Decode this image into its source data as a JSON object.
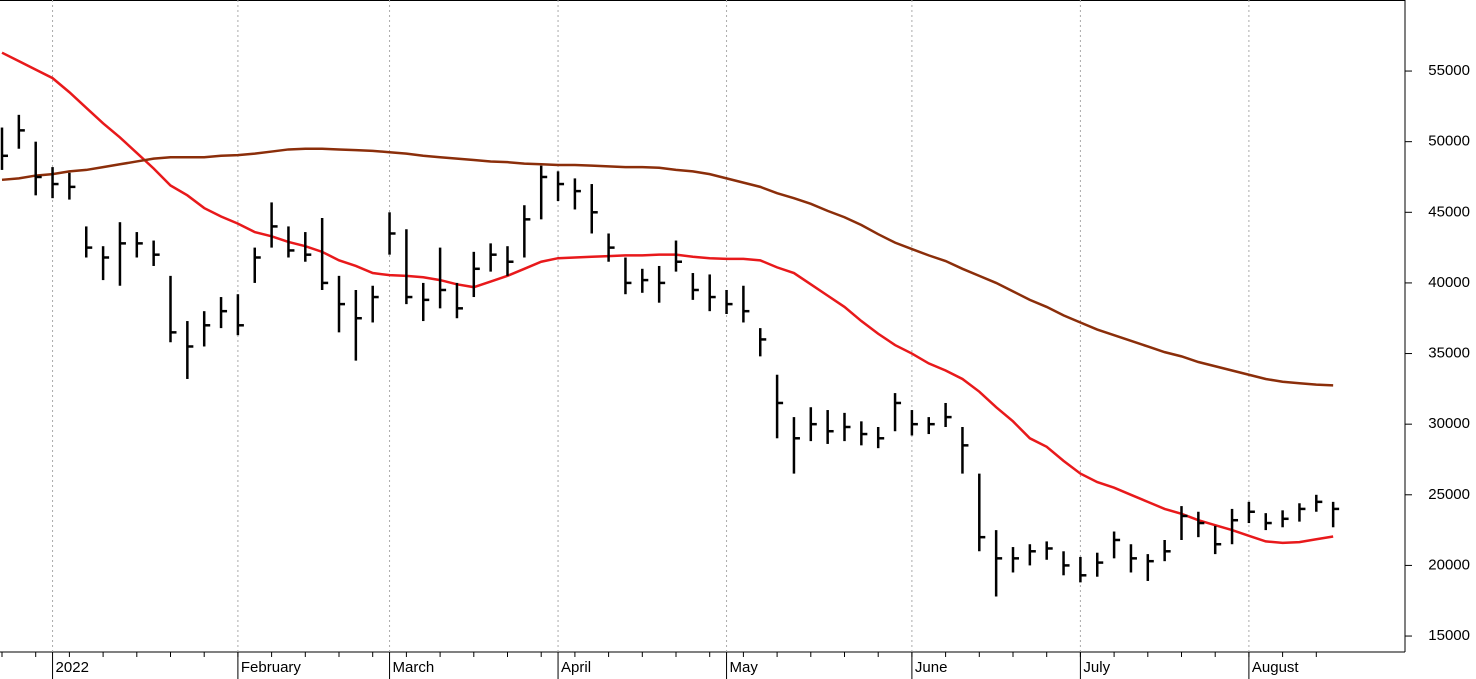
{
  "chart_data": {
    "type": "ohlc",
    "categories": [
      null,
      null,
      null,
      "2022",
      null,
      null,
      null,
      null,
      null,
      null,
      null,
      null,
      null,
      null,
      "February",
      null,
      null,
      null,
      null,
      null,
      null,
      null,
      null,
      "March",
      null,
      null,
      null,
      null,
      null,
      null,
      null,
      null,
      null,
      "April",
      null,
      null,
      null,
      null,
      null,
      null,
      null,
      null,
      null,
      "May",
      null,
      null,
      null,
      null,
      null,
      null,
      null,
      null,
      null,
      null,
      "June",
      null,
      null,
      null,
      null,
      null,
      null,
      null,
      null,
      null,
      "July",
      null,
      null,
      null,
      null,
      null,
      null,
      null,
      null,
      null,
      "August",
      null,
      null,
      null,
      null,
      null
    ],
    "high": [
      51000,
      51900,
      50000,
      48200,
      47800,
      44000,
      42600,
      44300,
      43600,
      43000,
      40500,
      37300,
      38000,
      39000,
      39200,
      42500,
      45700,
      44000,
      43600,
      44600,
      40500,
      39500,
      39800,
      45000,
      43800,
      40000,
      42500,
      40000,
      42200,
      42800,
      42600,
      45500,
      48300,
      47900,
      47400,
      47000,
      43500,
      41800,
      41000,
      41200,
      43000,
      40700,
      40600,
      39500,
      39800,
      36800,
      33500,
      30500,
      31200,
      31000,
      30800,
      30200,
      29800,
      32200,
      31000,
      30500,
      31500,
      29800,
      26500,
      22500,
      21300,
      21500,
      21700,
      21000,
      20600,
      20900,
      22400,
      21500,
      20800,
      21800,
      24200,
      23800,
      22800,
      24000,
      24500,
      23700,
      23900,
      24400,
      25000,
      24500
    ],
    "low": [
      48000,
      49500,
      46200,
      46000,
      45900,
      41800,
      40200,
      39800,
      41800,
      41200,
      35800,
      33200,
      35500,
      36800,
      36300,
      40000,
      42500,
      41800,
      41500,
      39500,
      36500,
      34500,
      37200,
      42000,
      38500,
      37300,
      38200,
      37500,
      39000,
      40800,
      40500,
      41800,
      44500,
      45800,
      45200,
      43500,
      41500,
      39200,
      39300,
      38600,
      40800,
      38800,
      38000,
      37800,
      37200,
      34800,
      29000,
      26500,
      28800,
      28600,
      28800,
      28500,
      28300,
      29500,
      29200,
      29300,
      29800,
      26500,
      21000,
      17800,
      19500,
      20000,
      20400,
      19300,
      18800,
      19200,
      20500,
      19500,
      18900,
      20300,
      21800,
      22000,
      20800,
      21500,
      23000,
      22500,
      22700,
      23100,
      23800,
      22700
    ],
    "close": [
      49000,
      50800,
      47500,
      47000,
      46800,
      42500,
      41800,
      42800,
      42800,
      42000,
      36500,
      35500,
      37000,
      38000,
      37000,
      41800,
      44000,
      42300,
      42000,
      40000,
      38500,
      37500,
      39000,
      43500,
      39000,
      38800,
      39500,
      38200,
      41000,
      42000,
      41500,
      44500,
      47500,
      47000,
      46500,
      45000,
      42500,
      40000,
      40200,
      40000,
      41500,
      39500,
      39000,
      38500,
      38000,
      36000,
      31500,
      29000,
      30000,
      29500,
      29800,
      29300,
      29000,
      31500,
      30000,
      30000,
      30500,
      28500,
      22000,
      20500,
      20500,
      21000,
      21200,
      20000,
      19300,
      20200,
      21800,
      20500,
      20300,
      21000,
      23500,
      23000,
      21500,
      23200,
      23800,
      23000,
      23300,
      24000,
      24500,
      24000
    ],
    "color": "#000000",
    "lines": [
      {
        "color": "#e8191b",
        "values": [
          56300,
          55700,
          55100,
          54500,
          53500,
          52400,
          51300,
          50300,
          49200,
          48100,
          46900,
          46200,
          45300,
          44700,
          44200,
          43600,
          43300,
          42900,
          42600,
          42200,
          41600,
          41200,
          40700,
          40550,
          40500,
          40400,
          40200,
          39900,
          39700,
          40100,
          40500,
          41000,
          41500,
          41750,
          41800,
          41850,
          41900,
          41950,
          41950,
          42000,
          42000,
          41850,
          41750,
          41700,
          41700,
          41600,
          41100,
          40700,
          39900,
          39100,
          38300,
          37300,
          36400,
          35600,
          35000,
          34300,
          33800,
          33200,
          32300,
          31200,
          30200,
          29000,
          28400,
          27400,
          26500,
          25900,
          25500,
          25000,
          24500,
          24000,
          23650,
          23200,
          22850,
          22500,
          22100,
          21700,
          21600,
          21650,
          21850,
          22050
        ]
      },
      {
        "color": "#8b2e0a",
        "values": [
          47300,
          47400,
          47600,
          47700,
          47900,
          48000,
          48200,
          48400,
          48600,
          48800,
          48900,
          48900,
          48900,
          49000,
          49050,
          49150,
          49300,
          49450,
          49500,
          49500,
          49450,
          49400,
          49350,
          49250,
          49150,
          49000,
          48900,
          48800,
          48700,
          48600,
          48550,
          48450,
          48400,
          48350,
          48350,
          48300,
          48250,
          48200,
          48200,
          48150,
          48000,
          47900,
          47700,
          47400,
          47100,
          46800,
          46350,
          46000,
          45600,
          45100,
          44650,
          44100,
          43450,
          42850,
          42400,
          41950,
          41550,
          41000,
          40500,
          40000,
          39400,
          38800,
          38300,
          37700,
          37200,
          36700,
          36300,
          35900,
          35500,
          35100,
          34800,
          34400,
          34100,
          33800,
          33500,
          33200,
          33000,
          32900,
          32800,
          32750
        ]
      }
    ],
    "ylim": [
      13870,
      60030
    ],
    "yticks": [
      15000,
      20000,
      25000,
      30000,
      35000,
      40000,
      45000,
      50000,
      55000
    ],
    "grid": true
  }
}
